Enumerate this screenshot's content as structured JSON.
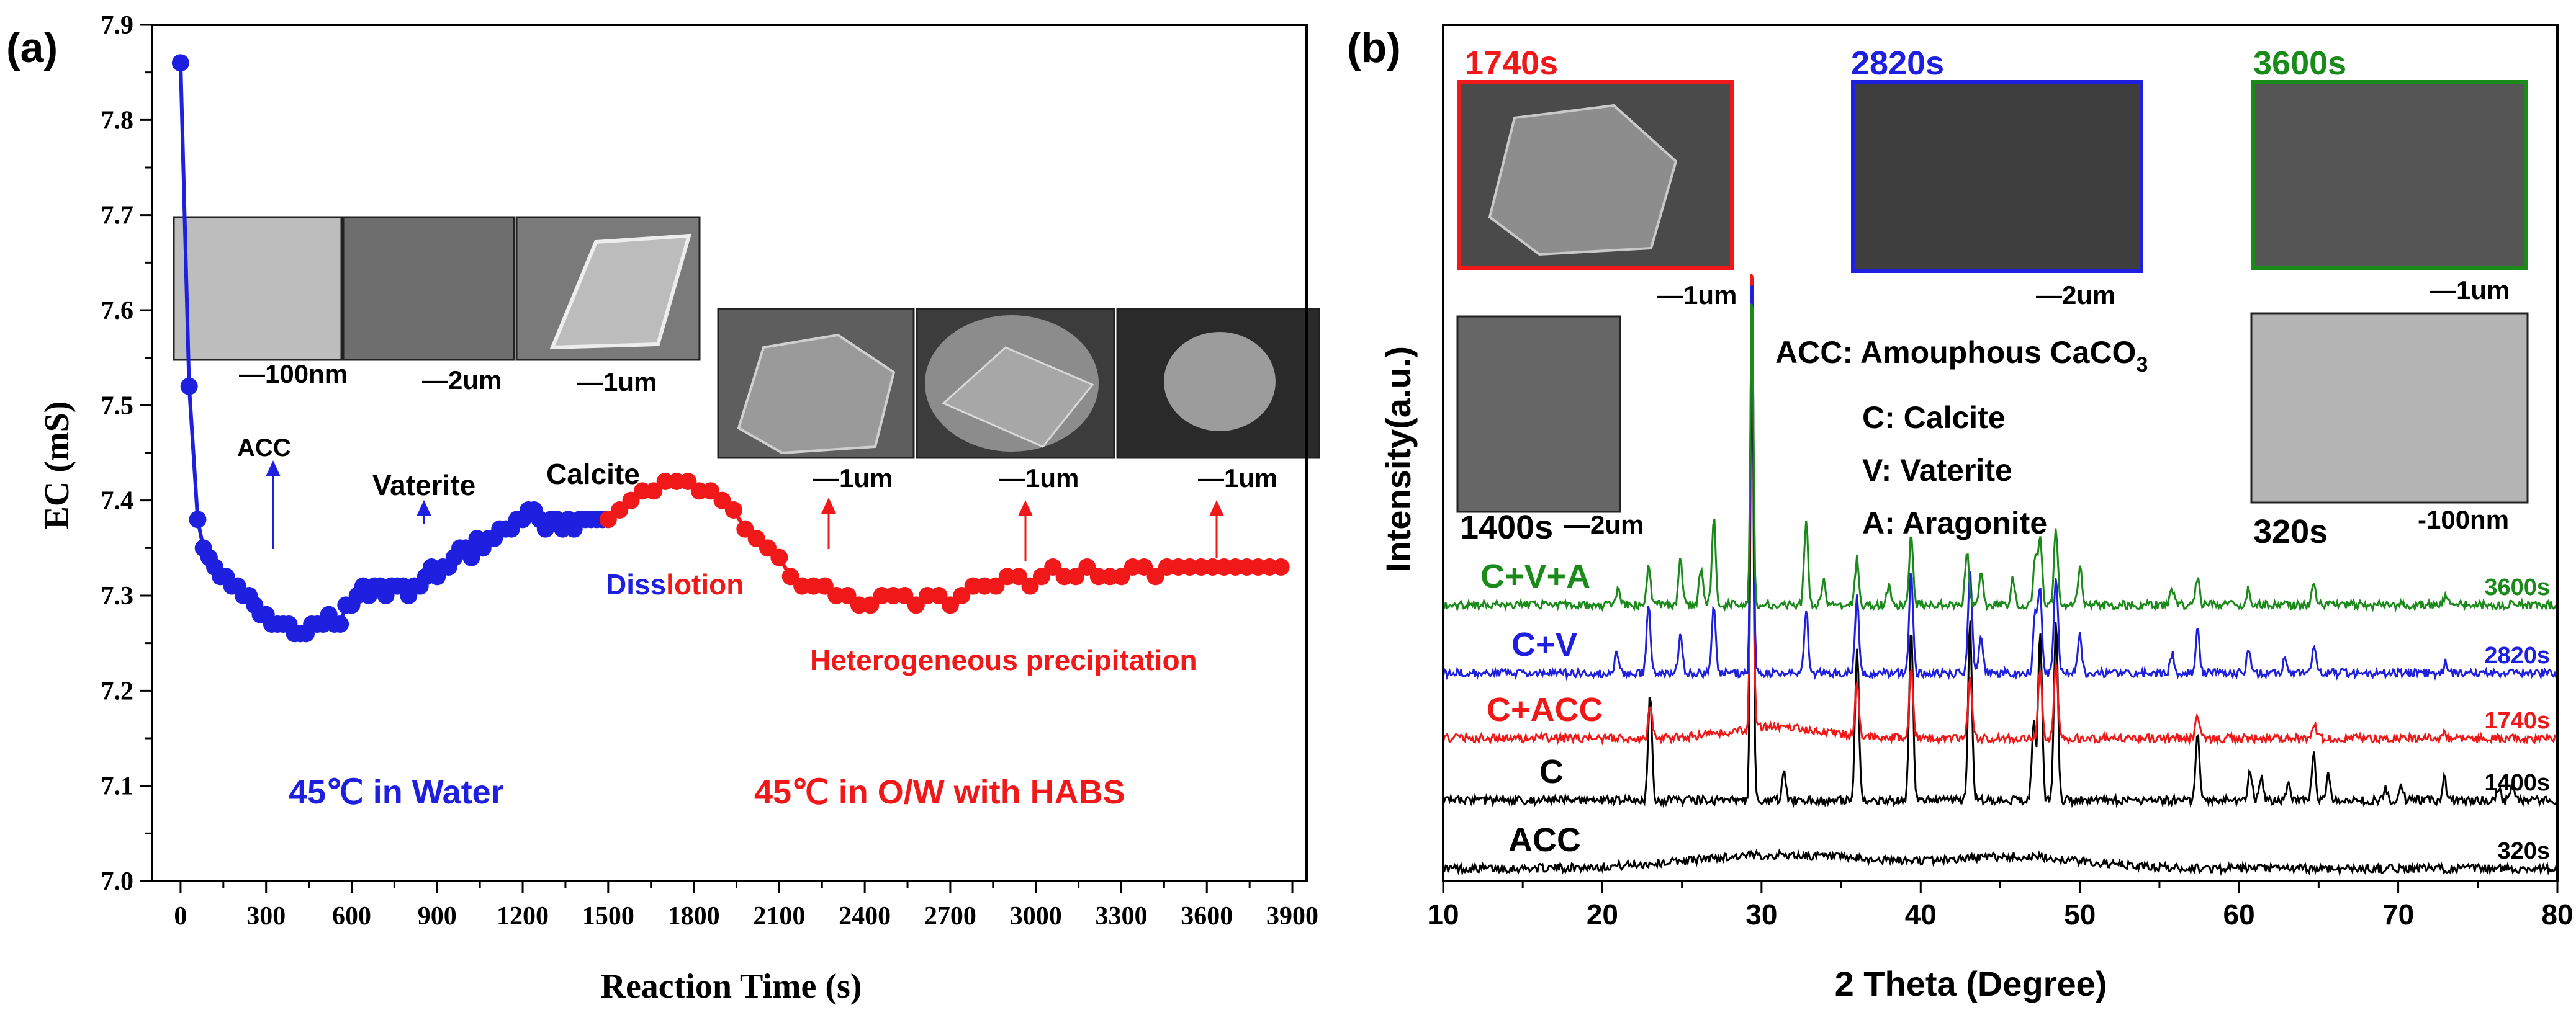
{
  "chart_data": [
    {
      "panel": "(a)",
      "type": "line",
      "xlabel": "Reaction Time (s)",
      "ylabel": "EC (mS)",
      "xlim": [
        -100,
        3950
      ],
      "ylim": [
        7.0,
        7.9
      ],
      "xticks": [
        0,
        300,
        600,
        900,
        1200,
        1500,
        1800,
        2100,
        2400,
        2700,
        3000,
        3300,
        3600,
        3900
      ],
      "yticks": [
        7.0,
        7.1,
        7.2,
        7.3,
        7.4,
        7.5,
        7.6,
        7.7,
        7.8,
        7.9
      ],
      "series": [
        {
          "name": "45℃ in Water",
          "color": "#1f1fe0",
          "x": [
            0,
            30,
            60,
            80,
            100,
            120,
            140,
            160,
            180,
            200,
            220,
            240,
            260,
            280,
            300,
            320,
            340,
            360,
            380,
            400,
            420,
            440,
            460,
            480,
            500,
            520,
            540,
            560,
            580,
            600,
            620,
            640,
            660,
            680,
            700,
            720,
            740,
            760,
            780,
            800,
            820,
            840,
            860,
            880,
            900,
            920,
            940,
            960,
            980,
            1000,
            1020,
            1040,
            1060,
            1080,
            1100,
            1120,
            1140,
            1160,
            1180,
            1200,
            1220,
            1240,
            1260,
            1280,
            1300,
            1320,
            1340,
            1360,
            1380,
            1400,
            1420,
            1440,
            1460,
            1480
          ],
          "y": [
            7.86,
            7.52,
            7.38,
            7.35,
            7.34,
            7.33,
            7.32,
            7.32,
            7.31,
            7.31,
            7.3,
            7.3,
            7.29,
            7.28,
            7.28,
            7.27,
            7.27,
            7.27,
            7.27,
            7.26,
            7.26,
            7.26,
            7.27,
            7.27,
            7.27,
            7.28,
            7.27,
            7.27,
            7.29,
            7.29,
            7.3,
            7.31,
            7.3,
            7.31,
            7.31,
            7.3,
            7.31,
            7.31,
            7.31,
            7.3,
            7.31,
            7.31,
            7.32,
            7.33,
            7.32,
            7.33,
            7.33,
            7.34,
            7.35,
            7.35,
            7.34,
            7.36,
            7.35,
            7.36,
            7.36,
            7.37,
            7.37,
            7.37,
            7.38,
            7.38,
            7.39,
            7.39,
            7.38,
            7.37,
            7.38,
            7.38,
            7.37,
            7.38,
            7.37,
            7.38,
            7.38,
            7.38,
            7.38,
            7.38
          ]
        },
        {
          "name": "45℃ in O/W with HABS",
          "color": "#f01818",
          "x": [
            1500,
            1540,
            1580,
            1620,
            1660,
            1700,
            1740,
            1780,
            1820,
            1860,
            1900,
            1940,
            1980,
            2020,
            2060,
            2100,
            2140,
            2180,
            2220,
            2260,
            2300,
            2340,
            2380,
            2420,
            2460,
            2500,
            2540,
            2580,
            2620,
            2660,
            2700,
            2740,
            2780,
            2820,
            2860,
            2900,
            2940,
            2980,
            3020,
            3060,
            3100,
            3140,
            3180,
            3220,
            3260,
            3300,
            3340,
            3380,
            3420,
            3460,
            3500,
            3540,
            3580,
            3620,
            3660,
            3700,
            3740,
            3780,
            3820,
            3860
          ],
          "y": [
            7.38,
            7.39,
            7.4,
            7.41,
            7.41,
            7.42,
            7.42,
            7.42,
            7.41,
            7.41,
            7.4,
            7.39,
            7.37,
            7.36,
            7.35,
            7.34,
            7.32,
            7.31,
            7.31,
            7.31,
            7.3,
            7.3,
            7.29,
            7.29,
            7.3,
            7.3,
            7.3,
            7.29,
            7.3,
            7.3,
            7.29,
            7.3,
            7.31,
            7.31,
            7.31,
            7.32,
            7.32,
            7.31,
            7.32,
            7.33,
            7.32,
            7.32,
            7.33,
            7.32,
            7.32,
            7.32,
            7.33,
            7.33,
            7.32,
            7.33,
            7.33,
            7.33,
            7.33,
            7.33,
            7.33,
            7.33,
            7.33,
            7.33,
            7.33,
            7.33
          ]
        }
      ],
      "annotations": [
        {
          "text": "ACC",
          "color": "#000000"
        },
        {
          "text": "Vaterite",
          "color": "#000000"
        },
        {
          "text": "Calcite",
          "color": "#000000"
        },
        {
          "text": "Heterogeneous precipitation",
          "color": "#f01818"
        },
        {
          "text": "45℃ in Water",
          "color": "#1f1fe0"
        },
        {
          "text": "45℃ in O/W with HABS",
          "color": "#f01818"
        }
      ],
      "dissolution_label": {
        "part1": "Diss",
        "part2": "lotion"
      },
      "inset_scales": [
        "—100nm",
        "—2um",
        "—1um",
        "—1um",
        "—1um",
        "—1um"
      ]
    },
    {
      "panel": "(b)",
      "type": "line",
      "xlabel": "2 Theta (Degree)",
      "ylabel": "Intensity(a.u.)",
      "xlim": [
        10,
        80
      ],
      "xticks": [
        10,
        20,
        30,
        40,
        50,
        60,
        70,
        80
      ],
      "series": [
        {
          "name": "ACC",
          "time": "320s",
          "color": "#000000",
          "offset": 0,
          "broad_humps": [
            [
              31,
              8,
              3.5
            ],
            [
              46,
              6,
              3
            ]
          ],
          "peaks": []
        },
        {
          "name": "C",
          "time": "1400s",
          "color": "#000000",
          "offset": 1,
          "broad_humps": [],
          "peaks": [
            [
              23.0,
              28
            ],
            [
              29.4,
              140
            ],
            [
              31.4,
              7
            ],
            [
              36.0,
              40
            ],
            [
              39.4,
              45
            ],
            [
              43.1,
              47
            ],
            [
              47.1,
              20
            ],
            [
              47.5,
              45
            ],
            [
              48.5,
              48
            ],
            [
              57.4,
              18
            ],
            [
              60.7,
              8
            ],
            [
              61.4,
              6
            ],
            [
              63.1,
              5
            ],
            [
              64.7,
              12
            ],
            [
              65.6,
              7
            ],
            [
              69.2,
              3
            ],
            [
              70.2,
              4
            ],
            [
              72.9,
              6
            ],
            [
              76.3,
              3
            ],
            [
              77.2,
              4
            ]
          ]
        },
        {
          "name": "C+ACC",
          "time": "1740s",
          "color": "#f01818",
          "offset": 2,
          "broad_humps": [
            [
              31,
              4,
              3
            ]
          ],
          "peaks": [
            [
              23.0,
              8
            ],
            [
              29.4,
              130
            ],
            [
              36.0,
              14
            ],
            [
              39.4,
              18
            ],
            [
              43.1,
              16
            ],
            [
              47.5,
              18
            ],
            [
              48.5,
              20
            ],
            [
              57.4,
              6
            ],
            [
              64.7,
              4
            ],
            [
              72.9,
              2
            ]
          ]
        },
        {
          "name": "C+V",
          "time": "2820s",
          "color": "#1f1fe0",
          "offset": 3,
          "broad_humps": [],
          "peaks": [
            [
              20.9,
              5
            ],
            [
              22.9,
              18
            ],
            [
              24.9,
              10
            ],
            [
              27.0,
              18
            ],
            [
              29.4,
              110
            ],
            [
              32.8,
              17
            ],
            [
              36.0,
              20
            ],
            [
              39.4,
              27
            ],
            [
              43.1,
              27
            ],
            [
              43.8,
              10
            ],
            [
              47.2,
              16
            ],
            [
              47.5,
              21
            ],
            [
              48.5,
              26
            ],
            [
              50.0,
              10
            ],
            [
              55.8,
              5
            ],
            [
              57.4,
              11
            ],
            [
              60.6,
              6
            ],
            [
              62.9,
              4
            ],
            [
              64.7,
              7
            ],
            [
              73.0,
              3
            ]
          ]
        },
        {
          "name": "C+V+A",
          "time": "3600s",
          "color": "#1a8a1a",
          "offset": 4,
          "broad_humps": [],
          "peaks": [
            [
              21.0,
              4
            ],
            [
              22.9,
              10
            ],
            [
              24.9,
              12
            ],
            [
              26.2,
              10
            ],
            [
              27.0,
              23
            ],
            [
              29.4,
              85
            ],
            [
              32.8,
              22
            ],
            [
              33.9,
              6
            ],
            [
              36.0,
              12
            ],
            [
              38.0,
              5
            ],
            [
              39.4,
              18
            ],
            [
              42.9,
              14
            ],
            [
              43.8,
              9
            ],
            [
              45.8,
              7
            ],
            [
              47.2,
              12
            ],
            [
              47.5,
              18
            ],
            [
              48.5,
              20
            ],
            [
              50.0,
              10
            ],
            [
              55.8,
              4
            ],
            [
              57.4,
              7
            ],
            [
              60.6,
              4
            ],
            [
              64.7,
              5
            ],
            [
              73.0,
              3
            ]
          ]
        }
      ],
      "legend_text": {
        "acc_prefix": "ACC: Amouphous CaCO",
        "acc_sub": "3",
        "calcite": "C: Calcite",
        "vaterite": "V: Vaterite",
        "aragonite": "A: Aragonite"
      },
      "insets": [
        {
          "label": "1740s",
          "color": "#f01818",
          "scale": "—1um"
        },
        {
          "label": "2820s",
          "color": "#1f1fe0",
          "scale": "—2um"
        },
        {
          "label": "3600s",
          "color": "#1a8a1a",
          "scale": "—1um"
        },
        {
          "label": "1400s",
          "color": "#000000",
          "scale": "—2um"
        },
        {
          "label": "320s",
          "color": "#000000",
          "scale": "-100nm"
        }
      ]
    }
  ]
}
